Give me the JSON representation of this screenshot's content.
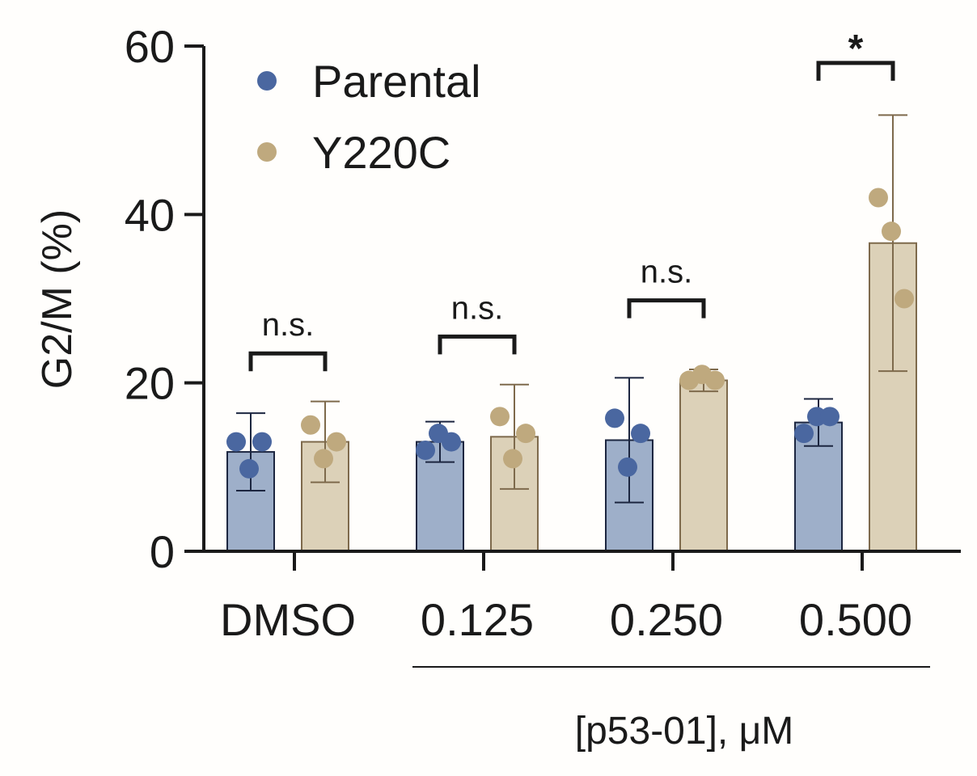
{
  "chart_data": {
    "type": "bar",
    "categories": [
      "DMSO",
      "0.125",
      "0.250",
      "0.500"
    ],
    "ylabel": "G2/M (%)",
    "xlabel": "[p53-01], μM",
    "ylim": [
      0,
      60
    ],
    "yticks": [
      0,
      20,
      40,
      60
    ],
    "grid": false,
    "legend_position": "top-left",
    "series": [
      {
        "name": "Parental",
        "color": "#4a67a0",
        "fill": "#9eafc9",
        "edge": "#1c2640",
        "values": [
          11.8,
          13.0,
          13.2,
          15.3
        ],
        "errors": [
          4.6,
          2.4,
          7.4,
          2.8
        ],
        "points": [
          [
            13,
            9.8,
            13
          ],
          [
            12,
            14,
            13
          ],
          [
            15.8,
            10,
            14
          ],
          [
            14,
            16,
            16
          ]
        ]
      },
      {
        "name": "Y220C",
        "color": "#bfa97e",
        "fill": "#dcd1b8",
        "edge": "#7e6a4c",
        "values": [
          13.0,
          13.6,
          20.3,
          36.6
        ],
        "errors": [
          4.8,
          6.2,
          1.3,
          15.2
        ],
        "points": [
          [
            15,
            11,
            13
          ],
          [
            16,
            11,
            14
          ],
          [
            20.3,
            21,
            20.3
          ],
          [
            42,
            38,
            30
          ]
        ]
      }
    ],
    "annotations": [
      {
        "category_index": 0,
        "label": "n.s.",
        "bracket_y": 23.5
      },
      {
        "category_index": 1,
        "label": "n.s.",
        "bracket_y": 25.5
      },
      {
        "category_index": 2,
        "label": "n.s.",
        "bracket_y": 29.8
      },
      {
        "category_index": 3,
        "label": "*",
        "bracket_y": 58.0
      }
    ],
    "concentration_bar_span": [
      1,
      3
    ]
  }
}
